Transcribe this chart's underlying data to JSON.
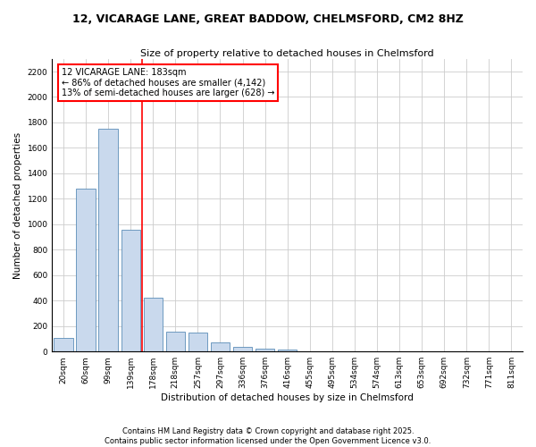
{
  "title_line1": "12, VICARAGE LANE, GREAT BADDOW, CHELMSFORD, CM2 8HZ",
  "title_line2": "Size of property relative to detached houses in Chelmsford",
  "xlabel": "Distribution of detached houses by size in Chelmsford",
  "ylabel": "Number of detached properties",
  "categories": [
    "20sqm",
    "60sqm",
    "99sqm",
    "139sqm",
    "178sqm",
    "218sqm",
    "257sqm",
    "297sqm",
    "336sqm",
    "376sqm",
    "416sqm",
    "455sqm",
    "495sqm",
    "534sqm",
    "574sqm",
    "613sqm",
    "653sqm",
    "692sqm",
    "732sqm",
    "771sqm",
    "811sqm"
  ],
  "values": [
    110,
    1280,
    1750,
    960,
    420,
    155,
    150,
    75,
    40,
    25,
    15,
    0,
    0,
    0,
    0,
    0,
    0,
    0,
    0,
    0,
    0
  ],
  "bar_color": "#c9d9ed",
  "bar_edge_color": "#5b8db8",
  "vline_x": 3.5,
  "annotation_text": "12 VICARAGE LANE: 183sqm\n← 86% of detached houses are smaller (4,142)\n13% of semi-detached houses are larger (628) →",
  "annotation_box_color": "white",
  "annotation_box_edge_color": "red",
  "vline_color": "red",
  "ylim": [
    0,
    2300
  ],
  "yticks": [
    0,
    200,
    400,
    600,
    800,
    1000,
    1200,
    1400,
    1600,
    1800,
    2000,
    2200
  ],
  "grid_color": "#cccccc",
  "background_color": "white",
  "footnote": "Contains HM Land Registry data © Crown copyright and database right 2025.\nContains public sector information licensed under the Open Government Licence v3.0.",
  "title_fontsize": 9,
  "subtitle_fontsize": 8,
  "axis_label_fontsize": 7.5,
  "tick_fontsize": 6.5,
  "annotation_fontsize": 7,
  "footnote_fontsize": 6
}
